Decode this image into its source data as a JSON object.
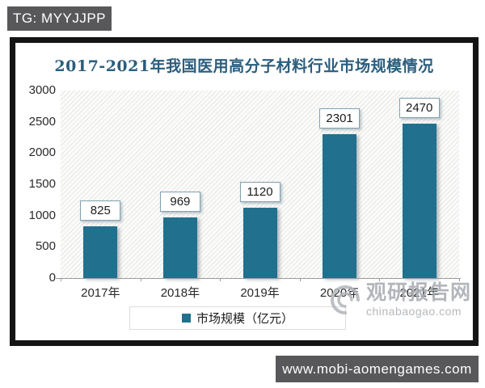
{
  "overlays": {
    "tg_badge": "TG: MYYJJPP",
    "url_badge": "www.mobi-aomengames.com"
  },
  "watermark": {
    "name": "观研报告网",
    "domain": "chinabaogao.com"
  },
  "chart_data": {
    "type": "bar",
    "title": "2017-2021年我国医用高分子材料行业市场规模情况",
    "categories": [
      "2017年",
      "2018年",
      "2019年",
      "2020年",
      "2021年"
    ],
    "values": [
      825,
      969,
      1120,
      2301,
      2470
    ],
    "series_name": "市场规模（亿元）",
    "xlabel": "",
    "ylabel": "",
    "ylim": [
      0,
      3000
    ],
    "yticks": [
      0,
      500,
      1000,
      1500,
      2000,
      2500,
      3000
    ],
    "grid": false,
    "legend_position": "bottom",
    "data_labels": true,
    "bar_color": "#21708e",
    "title_color": "#2b5d7d",
    "plot_background": "diagonal-hatch"
  }
}
